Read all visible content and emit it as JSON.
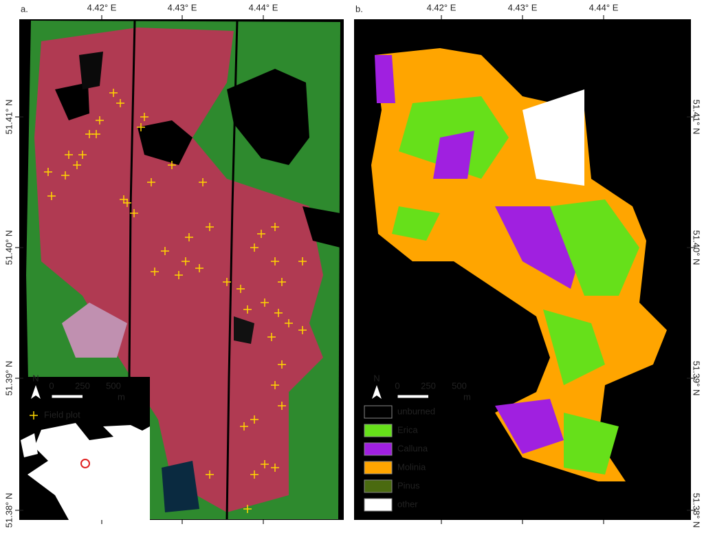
{
  "panels": [
    {
      "label": "a.",
      "lon_labels": [
        "4.42° E",
        "4.43° E",
        "4.44° E"
      ],
      "lat_labels": [
        "51.41° N",
        "51.40° N",
        "51.39° N",
        "51.38° N"
      ],
      "scale_bar": {
        "north": "N",
        "ticks": [
          "0",
          "250",
          "500"
        ],
        "unit": "m"
      },
      "legend": [
        {
          "label": "Field plot",
          "color": "#ffd700"
        }
      ]
    },
    {
      "label": "b.",
      "lon_labels": [
        "4.42° E",
        "4.43° E",
        "4.44° E"
      ],
      "lat_labels": [
        "51.41° N",
        "51.40° N",
        "51.39° N",
        "51.38° N"
      ],
      "scale_bar": {
        "north": "N",
        "ticks": [
          "0",
          "250",
          "500"
        ],
        "unit": "m"
      },
      "legend": [
        {
          "label": "unburned",
          "color": "#000000"
        },
        {
          "label": "Erica",
          "color": "#66e01a"
        },
        {
          "label": "Calluna",
          "color": "#a020e0"
        },
        {
          "label": "Molinia",
          "color": "#ffa500"
        },
        {
          "label": "Pinus",
          "color": "#4a6a10"
        },
        {
          "label": "other",
          "color": "#ffffff"
        }
      ]
    }
  ]
}
